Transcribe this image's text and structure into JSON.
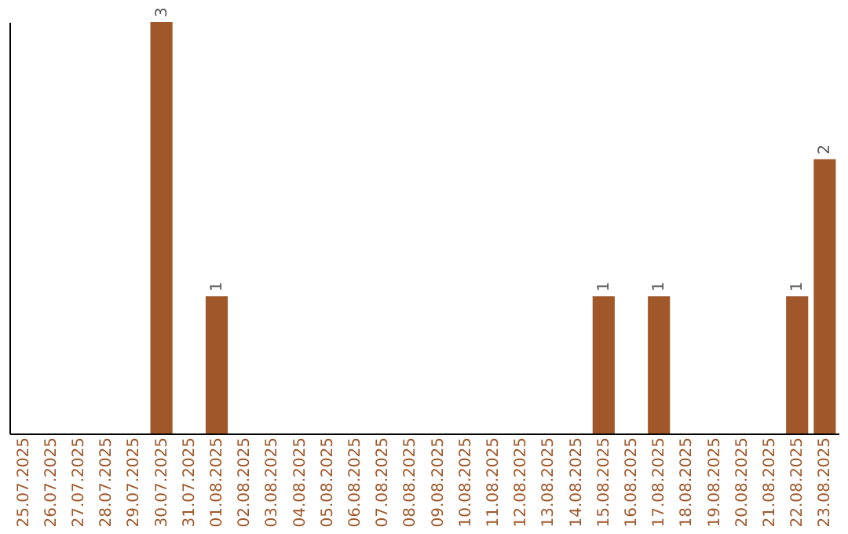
{
  "chart_data": {
    "type": "bar",
    "categories": [
      "25.07.2025",
      "26.07.2025",
      "27.07.2025",
      "28.07.2025",
      "29.07.2025",
      "30.07.2025",
      "31.07.2025",
      "01.08.2025",
      "02.08.2025",
      "03.08.2025",
      "04.08.2025",
      "05.08.2025",
      "06.08.2025",
      "07.08.2025",
      "08.08.2025",
      "09.08.2025",
      "10.08.2025",
      "11.08.2025",
      "12.08.2025",
      "13.08.2025",
      "14.08.2025",
      "15.08.2025",
      "16.08.2025",
      "17.08.2025",
      "18.08.2025",
      "19.08.2025",
      "20.08.2025",
      "21.08.2025",
      "22.08.2025",
      "23.08.2025"
    ],
    "values": [
      null,
      null,
      null,
      null,
      null,
      3,
      null,
      1,
      null,
      null,
      null,
      null,
      null,
      null,
      null,
      null,
      null,
      null,
      null,
      null,
      null,
      1,
      null,
      1,
      null,
      null,
      null,
      null,
      1,
      2
    ],
    "color": "#a0582a",
    "data_labels": true,
    "tick_labels": "x",
    "grid": false
  }
}
